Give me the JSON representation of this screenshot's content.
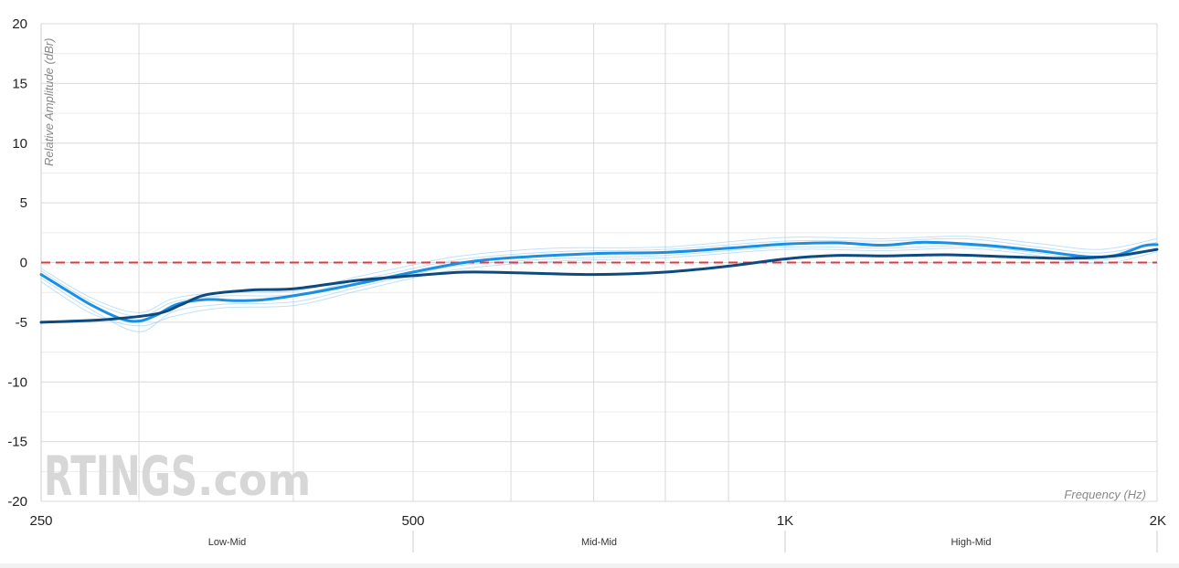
{
  "chart_data": {
    "type": "line",
    "xlabel": "Frequency (Hz)",
    "ylabel": "Relative Amplitude (dBr)",
    "xscale": "log",
    "xlim": [
      250,
      2000
    ],
    "ylim": [
      -20,
      20
    ],
    "yticks": [
      20,
      15,
      10,
      5,
      0,
      -5,
      -10,
      -15,
      -20
    ],
    "xticks": [
      {
        "value": 250,
        "label": "250"
      },
      {
        "value": 500,
        "label": "500"
      },
      {
        "value": 1000,
        "label": "1K"
      },
      {
        "value": 2000,
        "label": "2K"
      }
    ],
    "bands": [
      {
        "label": "Low-Mid",
        "range": [
          250,
          500
        ]
      },
      {
        "label": "Mid-Mid",
        "range": [
          500,
          1000
        ]
      },
      {
        "label": "High-Mid",
        "range": [
          1000,
          2000
        ]
      }
    ],
    "watermark": {
      "brand": "RTINGS",
      "suffix": ".com"
    },
    "grid": true,
    "target_line": {
      "y": 0,
      "color": "#e0393e"
    },
    "series": [
      {
        "role": "average-light",
        "color": "#1a8fe3",
        "points": [
          [
            250,
            -1
          ],
          [
            262,
            -2.3
          ],
          [
            275,
            -3.6
          ],
          [
            290,
            -4.7
          ],
          [
            300,
            -4.9
          ],
          [
            310,
            -4.4
          ],
          [
            322,
            -3.5
          ],
          [
            340,
            -3.1
          ],
          [
            360,
            -3.2
          ],
          [
            380,
            -3.1
          ],
          [
            410,
            -2.6
          ],
          [
            450,
            -1.8
          ],
          [
            500,
            -0.8
          ],
          [
            550,
            0
          ],
          [
            600,
            0.4
          ],
          [
            700,
            0.75
          ],
          [
            800,
            0.85
          ],
          [
            900,
            1.2
          ],
          [
            1000,
            1.55
          ],
          [
            1100,
            1.65
          ],
          [
            1200,
            1.45
          ],
          [
            1300,
            1.7
          ],
          [
            1450,
            1.45
          ],
          [
            1600,
            1
          ],
          [
            1750,
            0.5
          ],
          [
            1850,
            0.6
          ],
          [
            1950,
            1.4
          ],
          [
            2000,
            1.5
          ]
        ]
      },
      {
        "role": "average-dark",
        "color": "#0d4a80",
        "points": [
          [
            250,
            -5
          ],
          [
            280,
            -4.8
          ],
          [
            310,
            -4.3
          ],
          [
            325,
            -3.5
          ],
          [
            340,
            -2.7
          ],
          [
            370,
            -2.3
          ],
          [
            400,
            -2.2
          ],
          [
            450,
            -1.5
          ],
          [
            500,
            -1.1
          ],
          [
            550,
            -0.8
          ],
          [
            600,
            -0.85
          ],
          [
            700,
            -1
          ],
          [
            800,
            -0.8
          ],
          [
            900,
            -0.3
          ],
          [
            1000,
            0.3
          ],
          [
            1100,
            0.6
          ],
          [
            1200,
            0.55
          ],
          [
            1350,
            0.65
          ],
          [
            1500,
            0.5
          ],
          [
            1700,
            0.35
          ],
          [
            1850,
            0.55
          ],
          [
            2000,
            1.1
          ]
        ]
      },
      {
        "role": "sample",
        "color": "#8cc8f2",
        "points": [
          [
            250,
            -1.3
          ],
          [
            275,
            -4
          ],
          [
            300,
            -5.8
          ],
          [
            320,
            -4.1
          ],
          [
            350,
            -3.5
          ],
          [
            400,
            -3.3
          ],
          [
            450,
            -2.1
          ],
          [
            500,
            -1
          ],
          [
            550,
            -0.2
          ],
          [
            650,
            0.3
          ],
          [
            800,
            0.6
          ],
          [
            1000,
            1.3
          ],
          [
            1200,
            1.2
          ],
          [
            1400,
            1.4
          ],
          [
            1600,
            0.8
          ],
          [
            1800,
            0.2
          ],
          [
            2000,
            1.1
          ]
        ]
      },
      {
        "role": "sample",
        "color": "#8cc8f2",
        "points": [
          [
            250,
            -0.7
          ],
          [
            275,
            -3.3
          ],
          [
            300,
            -4.5
          ],
          [
            320,
            -3.3
          ],
          [
            350,
            -2.8
          ],
          [
            400,
            -2.7
          ],
          [
            450,
            -1.5
          ],
          [
            500,
            -0.5
          ],
          [
            550,
            0.3
          ],
          [
            650,
            0.9
          ],
          [
            800,
            1.1
          ],
          [
            1000,
            1.8
          ],
          [
            1200,
            1.8
          ],
          [
            1400,
            2
          ],
          [
            1600,
            1.3
          ],
          [
            1800,
            0.8
          ],
          [
            2000,
            1.7
          ]
        ]
      },
      {
        "role": "sample",
        "color": "#8cc8f2",
        "points": [
          [
            250,
            -1.6
          ],
          [
            275,
            -4.3
          ],
          [
            300,
            -5.3
          ],
          [
            320,
            -4.5
          ],
          [
            350,
            -3.8
          ],
          [
            400,
            -3.6
          ],
          [
            450,
            -2.4
          ],
          [
            500,
            -1.3
          ],
          [
            550,
            -0.5
          ],
          [
            650,
            0.1
          ],
          [
            800,
            0.4
          ],
          [
            1000,
            1.1
          ],
          [
            1200,
            1
          ],
          [
            1400,
            1.2
          ],
          [
            1600,
            0.6
          ],
          [
            1800,
            -0.1
          ],
          [
            2000,
            0.9
          ]
        ]
      },
      {
        "role": "sample",
        "color": "#8cc8f2",
        "points": [
          [
            250,
            -0.5
          ],
          [
            275,
            -3
          ],
          [
            300,
            -4.2
          ],
          [
            320,
            -3
          ],
          [
            350,
            -2.5
          ],
          [
            400,
            -2.4
          ],
          [
            450,
            -1.2
          ],
          [
            500,
            -0.2
          ],
          [
            550,
            0.6
          ],
          [
            650,
            1.2
          ],
          [
            800,
            1.3
          ],
          [
            1000,
            2.1
          ],
          [
            1200,
            2
          ],
          [
            1400,
            2.2
          ],
          [
            1600,
            1.6
          ],
          [
            1800,
            1.1
          ],
          [
            2000,
            2
          ]
        ]
      }
    ]
  }
}
